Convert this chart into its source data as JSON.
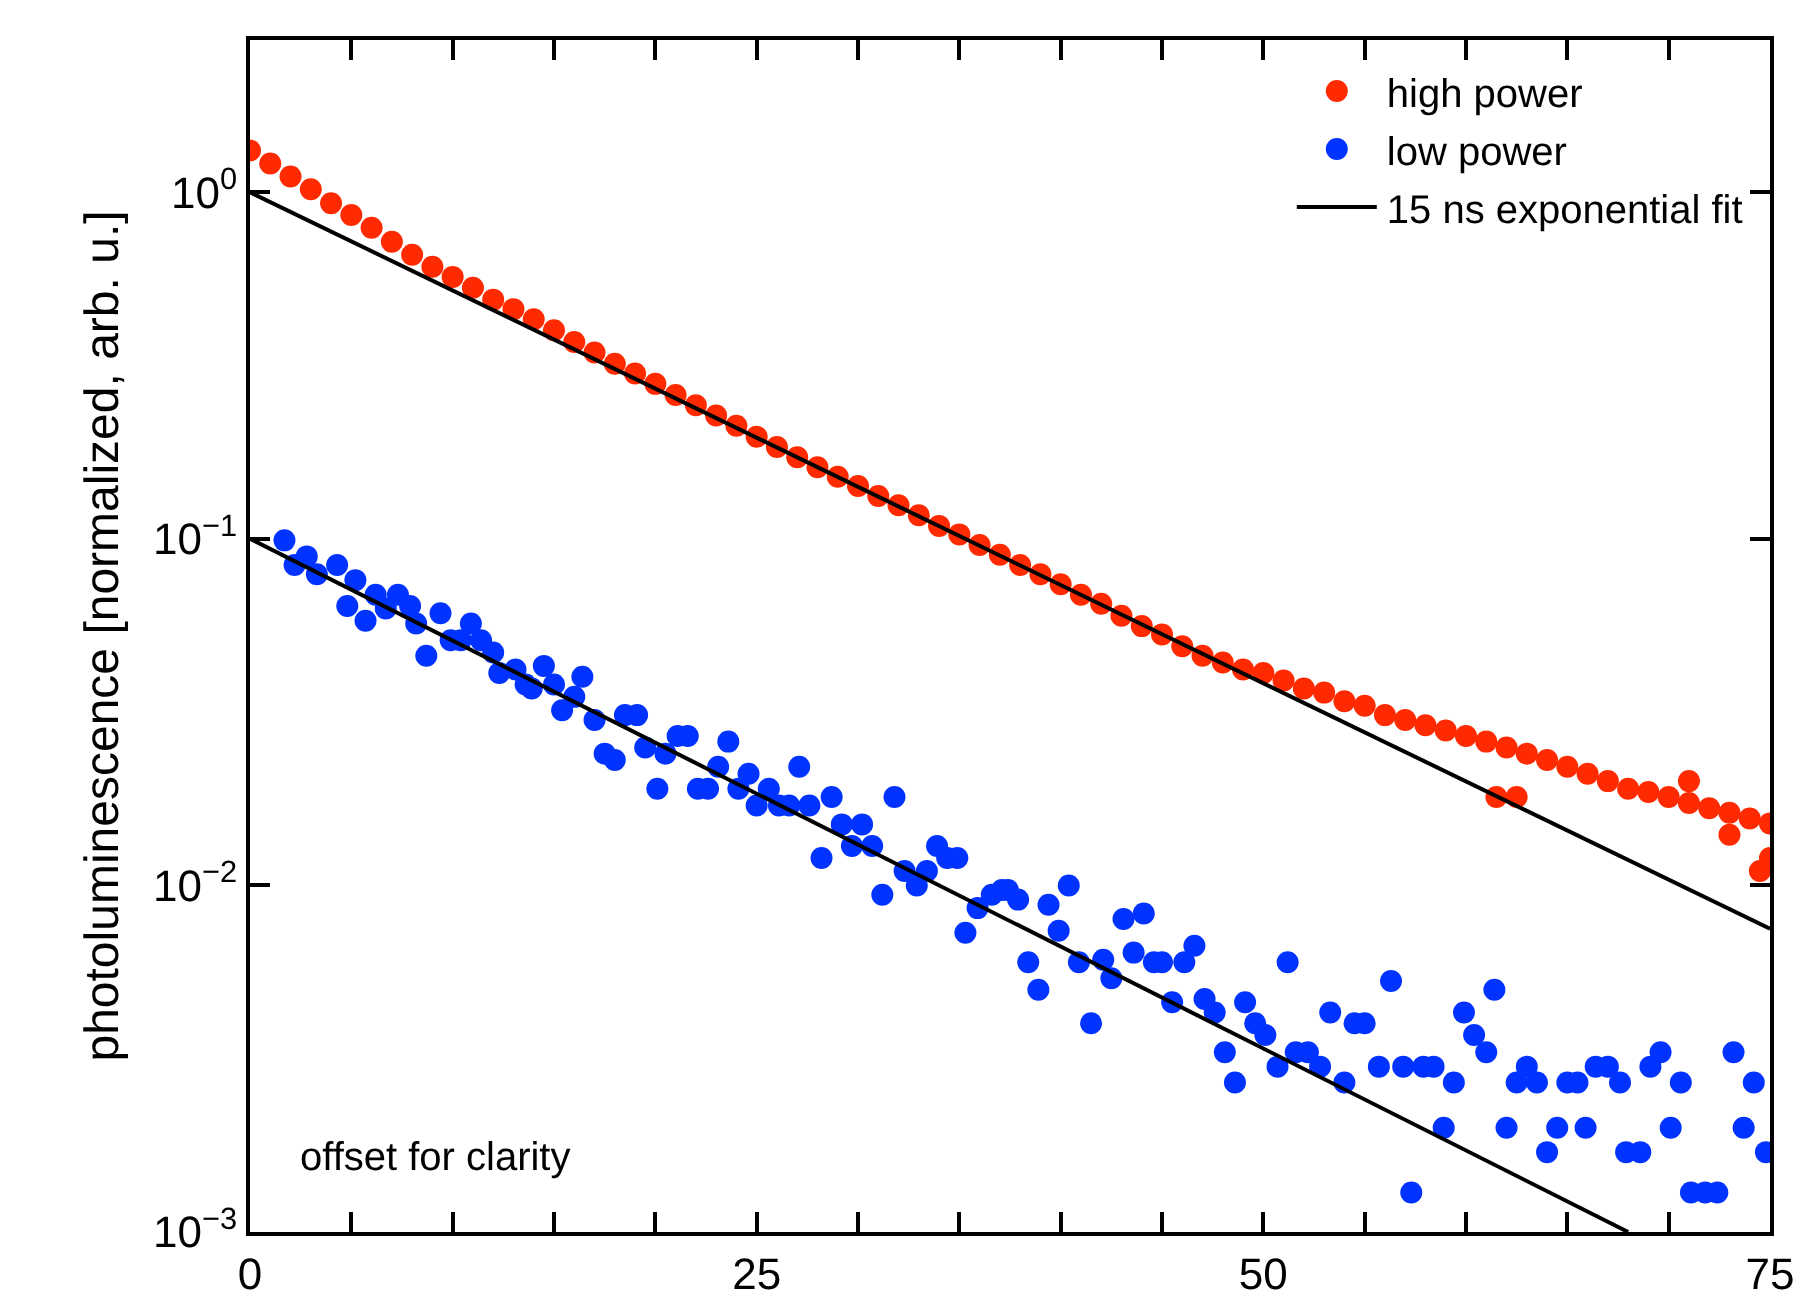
{
  "chart_data": {
    "type": "scatter",
    "ylabel": "photoluminescence [normalized, arb. u.]",
    "log": "y",
    "grid": false,
    "legend": "top right",
    "marker": "circle",
    "xlim": [
      0,
      75
    ],
    "xticks": [
      0,
      {
        "value": 5,
        "label": null
      },
      {
        "value": 10,
        "label": null
      },
      {
        "value": 15,
        "label": null
      },
      {
        "value": 20,
        "label": null
      },
      25,
      {
        "value": 30,
        "label": null
      },
      {
        "value": 35,
        "label": null
      },
      {
        "value": 40,
        "label": null
      },
      {
        "value": 45,
        "label": null
      },
      50,
      {
        "value": 55,
        "label": null
      },
      {
        "value": 60,
        "label": null
      },
      {
        "value": 65,
        "label": null
      },
      {
        "value": 70,
        "label": null
      },
      75
    ],
    "ylim": [
      0.001,
      2.75
    ],
    "yticks": [
      {
        "value": 0.001,
        "label": "10$^{−3}$"
      },
      {
        "value": 0.01,
        "label": "10$^{−2}$"
      },
      {
        "value": 0.1,
        "label": "10$^{−1}$"
      },
      {
        "value": 1,
        "label": "10$^{0}$"
      }
    ],
    "annotations": [
      "offset for clarity"
    ],
    "series": [
      {
        "name": "high power",
        "color": "#ff2a00",
        "x": [
          0,
          1,
          2,
          3,
          4,
          5,
          6,
          7,
          8,
          9,
          10,
          11,
          12,
          13,
          14,
          15,
          16,
          17,
          18,
          19,
          20,
          21,
          22,
          23,
          24,
          25,
          26,
          27,
          28,
          29,
          30,
          31,
          32,
          33,
          34,
          35,
          36,
          37,
          38,
          39,
          40,
          41,
          42,
          43,
          44,
          45,
          46,
          47,
          48,
          49,
          50,
          51,
          52,
          53,
          54,
          55,
          56,
          57,
          58,
          59,
          60,
          61,
          61.5,
          62,
          62.5,
          63,
          64,
          65,
          66,
          67,
          68,
          69,
          70,
          71,
          71,
          72,
          73,
          73,
          74,
          74.5,
          75,
          75
        ],
        "values": [
          1.32,
          1.21,
          1.11,
          1.02,
          0.93,
          0.86,
          0.79,
          0.72,
          0.66,
          0.61,
          0.57,
          0.53,
          0.49,
          0.46,
          0.43,
          0.4,
          0.37,
          0.345,
          0.32,
          0.3,
          0.28,
          0.26,
          0.243,
          0.227,
          0.212,
          0.197,
          0.184,
          0.172,
          0.161,
          0.151,
          0.142,
          0.133,
          0.125,
          0.117,
          0.109,
          0.103,
          0.096,
          0.09,
          0.084,
          0.079,
          0.074,
          0.069,
          0.065,
          0.06,
          0.056,
          0.053,
          0.049,
          0.046,
          0.044,
          0.042,
          0.041,
          0.039,
          0.037,
          0.036,
          0.034,
          0.033,
          0.031,
          0.03,
          0.029,
          0.028,
          0.027,
          0.026,
          0.018,
          0.025,
          0.018,
          0.024,
          0.023,
          0.022,
          0.021,
          0.02,
          0.019,
          0.0186,
          0.018,
          0.0173,
          0.02,
          0.0167,
          0.0162,
          0.014,
          0.0156,
          0.011,
          0.0151,
          0.012
        ]
      },
      {
        "name": "low power",
        "color": "#0033ff",
        "x": [
          1.7,
          2.2,
          2.8,
          3.3,
          4.3,
          4.8,
          5.2,
          5.7,
          6.2,
          6.7,
          7.3,
          7.9,
          8.2,
          8.7,
          9.4,
          9.9,
          10.4,
          10.9,
          11.4,
          12.0,
          12.3,
          13.1,
          13.6,
          13.9,
          14.5,
          15.0,
          15.4,
          16.0,
          16.4,
          17.0,
          17.5,
          18.0,
          18.5,
          19.1,
          19.5,
          20.1,
          20.5,
          21.1,
          21.6,
          22.1,
          22.6,
          23.1,
          23.6,
          24.1,
          24.6,
          25.0,
          25.6,
          26.1,
          26.6,
          27.1,
          27.6,
          28.2,
          28.7,
          29.2,
          29.7,
          30.2,
          30.7,
          31.2,
          31.8,
          32.3,
          32.9,
          33.4,
          33.9,
          34.4,
          34.9,
          35.3,
          35.9,
          36.6,
          37.1,
          37.4,
          37.9,
          38.4,
          38.9,
          39.4,
          39.9,
          40.4,
          40.9,
          41.5,
          42.1,
          42.5,
          43.1,
          43.6,
          44.1,
          44.6,
          45.0,
          45.5,
          46.1,
          46.6,
          47.1,
          47.6,
          48.1,
          48.6,
          49.1,
          49.6,
          50.1,
          50.7,
          51.2,
          51.6,
          52.2,
          52.8,
          53.3,
          54.0,
          54.5,
          55.0,
          55.7,
          56.3,
          56.9,
          57.3,
          57.9,
          58.4,
          58.9,
          59.4,
          59.9,
          60.4,
          61.0,
          61.4,
          62.0,
          62.5,
          63.0,
          63.5,
          64.0,
          64.5,
          65.0,
          65.5,
          65.9,
          66.4,
          67.0,
          67.6,
          67.9,
          68.6,
          69.1,
          69.6,
          70.1,
          70.6,
          71.1,
          71.8,
          72.4,
          73.2,
          73.7,
          74.2,
          74.8
        ],
        "values": [
          0.099,
          0.084,
          0.089,
          0.079,
          0.084,
          0.064,
          0.076,
          0.058,
          0.069,
          0.063,
          0.069,
          0.064,
          0.057,
          0.046,
          0.061,
          0.051,
          0.051,
          0.057,
          0.051,
          0.047,
          0.041,
          0.042,
          0.038,
          0.037,
          0.043,
          0.038,
          0.032,
          0.035,
          0.04,
          0.03,
          0.024,
          0.023,
          0.031,
          0.031,
          0.025,
          0.019,
          0.024,
          0.027,
          0.027,
          0.019,
          0.019,
          0.022,
          0.026,
          0.019,
          0.021,
          0.017,
          0.019,
          0.017,
          0.017,
          0.022,
          0.017,
          0.012,
          0.018,
          0.015,
          0.013,
          0.015,
          0.013,
          0.0094,
          0.018,
          0.011,
          0.01,
          0.011,
          0.013,
          0.012,
          0.012,
          0.0073,
          0.0086,
          0.0094,
          0.0097,
          0.0097,
          0.0091,
          0.006,
          0.005,
          0.0088,
          0.0074,
          0.01,
          0.006,
          0.004,
          0.0061,
          0.0054,
          0.008,
          0.0064,
          0.0083,
          0.006,
          0.006,
          0.0046,
          0.006,
          0.0067,
          0.0047,
          0.0043,
          0.0033,
          0.0027,
          0.0046,
          0.004,
          0.0037,
          0.003,
          0.006,
          0.0033,
          0.0033,
          0.003,
          0.0043,
          0.0027,
          0.004,
          0.004,
          0.003,
          0.0053,
          0.003,
          0.0013,
          0.003,
          0.003,
          0.002,
          0.0027,
          0.0043,
          0.0037,
          0.0033,
          0.005,
          0.002,
          0.0027,
          0.003,
          0.0027,
          0.0017,
          0.002,
          0.0027,
          0.0027,
          0.002,
          0.003,
          0.003,
          0.0027,
          0.0017,
          0.0017,
          0.003,
          0.0033,
          0.002,
          0.0027,
          0.0013,
          0.0013,
          0.0013,
          0.0033,
          0.002,
          0.0027,
          0.0017
        ]
      },
      {
        "name": "15 ns exponential fit",
        "color": "#000000",
        "type": "line",
        "marker": "none",
        "line_style": "solid",
        "x": [
          0,
          75
        ],
        "values": [
          1.0,
          0.0075
        ]
      },
      {
        "color": "#000000",
        "type": "line",
        "marker": "none",
        "line_style": "solid",
        "x": [
          0,
          68
        ],
        "values": [
          0.1,
          0.001
        ]
      }
    ]
  }
}
